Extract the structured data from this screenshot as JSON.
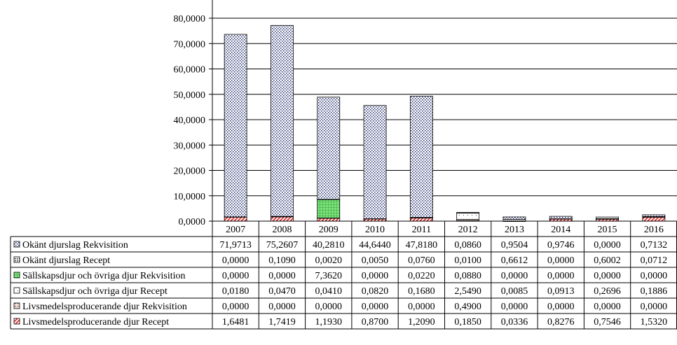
{
  "chart_data": {
    "type": "bar",
    "stacked": true,
    "title": "",
    "xlabel": "",
    "ylabel": "",
    "ylim": [
      0,
      80
    ],
    "yticks": [
      "0,0000",
      "10,0000",
      "20,0000",
      "30,0000",
      "40,0000",
      "50,0000",
      "60,0000",
      "70,0000",
      "80,0000"
    ],
    "grid": true,
    "legend": "data-table-left",
    "categories": [
      "2007",
      "2008",
      "2009",
      "2010",
      "2011",
      "2012",
      "2013",
      "2014",
      "2015",
      "2016"
    ],
    "series": [
      {
        "name": "Okänt djurslag Rekvisition",
        "pattern": "dots-navy",
        "color": "#1f2a6b",
        "values": [
          71.9713,
          75.2607,
          40.281,
          44.644,
          47.818,
          0.086,
          0.9504,
          0.9746,
          0.0,
          0.7132
        ],
        "labels": [
          "71,9713",
          "75,2607",
          "40,2810",
          "44,6440",
          "47,8180",
          "0,0860",
          "0,9504",
          "0,9746",
          "0,0000",
          "0,7132"
        ]
      },
      {
        "name": "Okänt djurslag Recept",
        "pattern": "dots-black",
        "color": "#000000",
        "values": [
          0.0,
          0.109,
          0.002,
          0.005,
          0.076,
          0.01,
          0.6612,
          0.0,
          0.6002,
          0.0712
        ],
        "labels": [
          "0,0000",
          "0,1090",
          "0,0020",
          "0,0050",
          "0,0760",
          "0,0100",
          "0,6612",
          "0,0000",
          "0,6002",
          "0,0712"
        ]
      },
      {
        "name": "Sällskapsdjur och övriga djur Rekvisition",
        "pattern": "grid-green",
        "color": "#33cc33",
        "values": [
          0.0,
          0.0,
          7.362,
          0.0,
          0.022,
          0.088,
          0.0,
          0.0,
          0.0,
          0.0
        ],
        "labels": [
          "0,0000",
          "0,0000",
          "7,3620",
          "0,0000",
          "0,0220",
          "0,0880",
          "0,0000",
          "0,0000",
          "0,0000",
          "0,0000"
        ]
      },
      {
        "name": "Sällskapsdjur och övriga djur Recept",
        "pattern": "sparse-dots",
        "color": "#888888",
        "values": [
          0.018,
          0.047,
          0.041,
          0.082,
          0.168,
          2.549,
          0.0085,
          0.0913,
          0.2696,
          0.1886
        ],
        "labels": [
          "0,0180",
          "0,0470",
          "0,0410",
          "0,0820",
          "0,1680",
          "2,5490",
          "0,0085",
          "0,0913",
          "0,2696",
          "0,1886"
        ]
      },
      {
        "name": "Livsmedelsproducerande djur Rekvisition",
        "pattern": "brown-dots",
        "color": "#7a3b2e",
        "values": [
          0.0,
          0.0,
          0.0,
          0.0,
          0.0,
          0.49,
          0.0,
          0.0,
          0.0,
          0.0
        ],
        "labels": [
          "0,0000",
          "0,0000",
          "0,0000",
          "0,0000",
          "0,0000",
          "0,4900",
          "0,0000",
          "0,0000",
          "0,0000",
          "0,0000"
        ]
      },
      {
        "name": "Livsmedelsproducerande djur Recept",
        "pattern": "red-diagonal",
        "color": "#e02020",
        "values": [
          1.6481,
          1.7419,
          1.193,
          0.87,
          1.209,
          0.185,
          0.0336,
          0.8276,
          0.7546,
          1.532
        ],
        "labels": [
          "1,6481",
          "1,7419",
          "1,1930",
          "0,8700",
          "1,2090",
          "0,1850",
          "0,0336",
          "0,8276",
          "0,7546",
          "1,5320"
        ]
      }
    ]
  }
}
